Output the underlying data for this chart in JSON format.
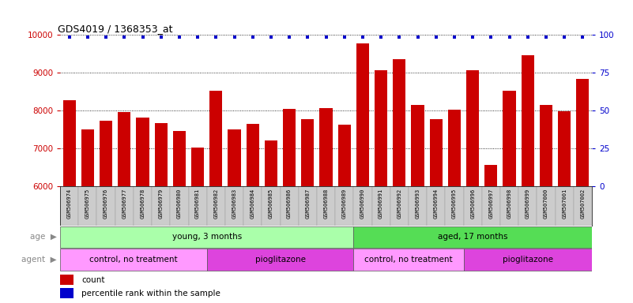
{
  "title": "GDS4019 / 1368353_at",
  "samples": [
    "GSM506974",
    "GSM506975",
    "GSM506976",
    "GSM506977",
    "GSM506978",
    "GSM506979",
    "GSM506980",
    "GSM506981",
    "GSM506982",
    "GSM506983",
    "GSM506984",
    "GSM506985",
    "GSM506986",
    "GSM506987",
    "GSM506988",
    "GSM506989",
    "GSM506990",
    "GSM506991",
    "GSM506992",
    "GSM506993",
    "GSM506994",
    "GSM506995",
    "GSM506996",
    "GSM506997",
    "GSM506998",
    "GSM506999",
    "GSM507000",
    "GSM507001",
    "GSM507002"
  ],
  "counts": [
    8280,
    7510,
    7730,
    7970,
    7810,
    7680,
    7460,
    7020,
    8530,
    7510,
    7640,
    7210,
    8040,
    7770,
    8060,
    7630,
    9780,
    9070,
    9360,
    8150,
    7780,
    8020,
    9060,
    6570,
    8530,
    9460,
    8140,
    7990,
    8830
  ],
  "bar_color": "#cc0000",
  "dot_color": "#0000cc",
  "ylim_left": [
    6000,
    10000
  ],
  "ylim_right": [
    0,
    100
  ],
  "yticks_left": [
    6000,
    7000,
    8000,
    9000,
    10000
  ],
  "yticks_right": [
    0,
    25,
    50,
    75,
    100
  ],
  "groups_age": [
    {
      "label": "young, 3 months",
      "start": 0,
      "end": 16,
      "color": "#aaffaa"
    },
    {
      "label": "aged, 17 months",
      "start": 16,
      "end": 29,
      "color": "#55dd55"
    }
  ],
  "groups_agent": [
    {
      "label": "control, no treatment",
      "start": 0,
      "end": 8,
      "color": "#ff99ff"
    },
    {
      "label": "pioglitazone",
      "start": 8,
      "end": 16,
      "color": "#dd44dd"
    },
    {
      "label": "control, no treatment",
      "start": 16,
      "end": 22,
      "color": "#ff99ff"
    },
    {
      "label": "pioglitazone",
      "start": 22,
      "end": 29,
      "color": "#dd44dd"
    }
  ],
  "legend": [
    {
      "label": "count",
      "color": "#cc0000"
    },
    {
      "label": "percentile rank within the sample",
      "color": "#0000cc"
    }
  ],
  "background_color": "#ffffff",
  "ticklabel_bg": "#cccccc",
  "left_label_color": "#888888"
}
